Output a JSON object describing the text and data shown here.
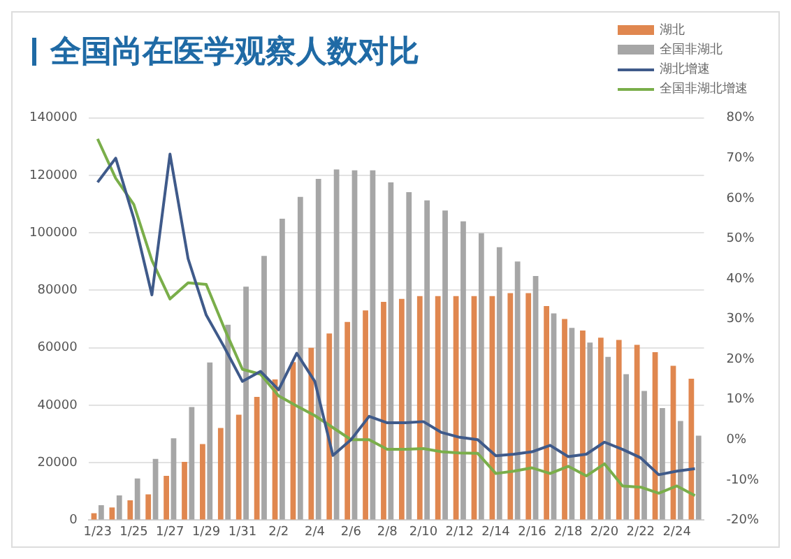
{
  "chart_data": {
    "type": "bar",
    "title": "全国尚在医学观察人数对比",
    "categories": [
      "1/23",
      null,
      "1/25",
      null,
      "1/27",
      null,
      "1/29",
      null,
      "1/31",
      null,
      "2/2",
      null,
      "2/4",
      null,
      "2/6",
      null,
      "2/8",
      null,
      "2/10",
      null,
      "2/12",
      null,
      "2/14",
      null,
      "2/16",
      null,
      "2/18",
      null,
      "2/20",
      null,
      "2/22",
      null,
      "2/24",
      null
    ],
    "series": [
      {
        "name": "湖北",
        "color": "#e0874f",
        "values": [
          2400,
          4400,
          6900,
          9000,
          15400,
          20300,
          26500,
          32100,
          36700,
          42900,
          49000,
          55000,
          60000,
          65000,
          69000,
          73000,
          76000,
          77000,
          78000,
          78000,
          78000,
          78000,
          78000,
          79000,
          79000,
          74500,
          70000,
          66000,
          63500,
          62700,
          61000,
          58500,
          53700,
          49200
        ]
      },
      {
        "name": "全国非湖北",
        "color": "#a6a6a6",
        "values": [
          5200,
          8600,
          14500,
          21300,
          28500,
          39400,
          54900,
          68000,
          81300,
          92000,
          104900,
          112500,
          118800,
          122100,
          121800,
          121800,
          117600,
          114200,
          111300,
          107800,
          104000,
          99900,
          95000,
          90000,
          85000,
          72000,
          66900,
          61800,
          56800,
          50800,
          45000,
          39000,
          34500,
          29400
        ]
      },
      {
        "name": "湖北增速",
        "type": "line",
        "axis": "y2",
        "color": "#3f5a8a",
        "values": [
          64,
          70,
          55,
          36,
          71,
          45,
          31,
          23,
          14.5,
          17,
          12.4,
          21.5,
          14.5,
          -3.9,
          0,
          5.8,
          4.2,
          4.2,
          4.5,
          1.8,
          0.6,
          0,
          -4,
          -3.6,
          -3,
          -1.4,
          -4.2,
          -3.6,
          -0.6,
          -2.4,
          -4.5,
          -8.7,
          -7.8,
          -7.2
        ]
      },
      {
        "name": "全国非湖北增速",
        "type": "line",
        "axis": "y2",
        "color": "#7aae4a",
        "values": [
          74.8,
          65,
          58.5,
          44.6,
          35,
          39,
          38.6,
          27.7,
          17.5,
          16.3,
          10.9,
          8.4,
          6,
          3,
          0,
          0,
          -2.4,
          -2.4,
          -2.2,
          -3,
          -3.3,
          -3.4,
          -8.4,
          -7.8,
          -7,
          -8.4,
          -6.6,
          -9,
          -6,
          -11.5,
          -11.8,
          -13.3,
          -11.5,
          -13.9
        ]
      }
    ],
    "ylim": [
      0,
      140000
    ],
    "yticks": [
      0,
      20000,
      40000,
      60000,
      80000,
      100000,
      120000,
      140000
    ],
    "y2lim": [
      -20,
      80
    ],
    "y2ticks": [
      {
        "value": -20,
        "label": "-20%"
      },
      {
        "value": -10,
        "label": "-10%"
      },
      {
        "value": 0,
        "label": "0%"
      },
      {
        "value": 10,
        "label": "10%"
      },
      {
        "value": 20,
        "label": "20%"
      },
      {
        "value": 30,
        "label": "30%"
      },
      {
        "value": 40,
        "label": "40%"
      },
      {
        "value": 50,
        "label": "50%"
      },
      {
        "value": 60,
        "label": "60%"
      },
      {
        "value": 70,
        "label": "70%"
      },
      {
        "value": 80,
        "label": "80%"
      }
    ],
    "grid": "y",
    "legend": "top right",
    "marker": "none",
    "line_style": "solid"
  }
}
